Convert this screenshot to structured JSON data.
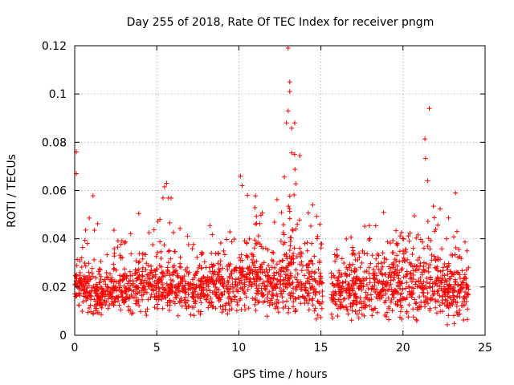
{
  "chart_data": {
    "type": "scatter",
    "title": "Day 255 of 2018, Rate Of TEC Index for receiver pngm",
    "xlabel": "GPS time / hours",
    "ylabel": "ROTI / TECUs",
    "xlim": [
      0,
      25
    ],
    "ylim": [
      0,
      0.12
    ],
    "x_ticks": [
      0,
      5,
      10,
      15,
      20,
      25
    ],
    "y_ticks": [
      0,
      0.02,
      0.04,
      0.06,
      0.08,
      0.1,
      0.12
    ],
    "x_tick_labels": [
      "0",
      "5",
      "10",
      "15",
      "20",
      "25"
    ],
    "y_tick_labels": [
      "0",
      "0.02",
      "0.04",
      "0.06",
      "0.08",
      "0.1",
      "0.12"
    ],
    "grid": true,
    "marker": "+",
    "color": "#ff0000",
    "data_gap_hours": [
      15.1,
      15.6
    ],
    "notable_points": [
      {
        "x": 0.1,
        "y": 0.076
      },
      {
        "x": 0.1,
        "y": 0.067
      },
      {
        "x": 5.6,
        "y": 0.063
      },
      {
        "x": 10.1,
        "y": 0.066
      },
      {
        "x": 10.2,
        "y": 0.062
      },
      {
        "x": 13.0,
        "y": 0.119
      },
      {
        "x": 13.1,
        "y": 0.105
      },
      {
        "x": 13.1,
        "y": 0.101
      },
      {
        "x": 13.0,
        "y": 0.093
      },
      {
        "x": 12.9,
        "y": 0.088
      },
      {
        "x": 13.4,
        "y": 0.088
      },
      {
        "x": 13.4,
        "y": 0.075
      },
      {
        "x": 21.6,
        "y": 0.094
      },
      {
        "x": 21.5,
        "y": 0.064
      },
      {
        "x": 23.2,
        "y": 0.059
      }
    ],
    "envelope": {
      "x": [
        0,
        0.5,
        1,
        1.5,
        2,
        2.5,
        3,
        3.5,
        4,
        4.5,
        5,
        5.5,
        6,
        6.5,
        7,
        7.5,
        8,
        8.5,
        9,
        9.5,
        10,
        10.5,
        11,
        11.5,
        12,
        12.5,
        13,
        13.5,
        14,
        14.5,
        15,
        15.6,
        16,
        16.5,
        17,
        17.5,
        18,
        18.5,
        19,
        19.5,
        20,
        20.5,
        21,
        21.5,
        22,
        22.5,
        23,
        23.5,
        24
      ],
      "low": [
        0.01,
        0.008,
        0.008,
        0.008,
        0.008,
        0.009,
        0.008,
        0.008,
        0.008,
        0.008,
        0.007,
        0.008,
        0.007,
        0.006,
        0.006,
        0.007,
        0.008,
        0.009,
        0.008,
        0.008,
        0.007,
        0.008,
        0.008,
        0.007,
        0.008,
        0.006,
        0.006,
        0.005,
        0.005,
        0.005,
        0.005,
        0.006,
        0.006,
        0.006,
        0.006,
        0.005,
        0.005,
        0.005,
        0.005,
        0.006,
        0.004,
        0.004,
        0.005,
        0.005,
        0.005,
        0.004,
        0.004,
        0.005,
        0.006
      ],
      "typical_high": [
        0.032,
        0.03,
        0.028,
        0.026,
        0.028,
        0.03,
        0.03,
        0.032,
        0.034,
        0.033,
        0.032,
        0.034,
        0.035,
        0.033,
        0.032,
        0.033,
        0.034,
        0.034,
        0.033,
        0.033,
        0.036,
        0.038,
        0.038,
        0.036,
        0.036,
        0.038,
        0.045,
        0.042,
        0.038,
        0.036,
        0.033,
        0.03,
        0.031,
        0.032,
        0.034,
        0.034,
        0.033,
        0.033,
        0.036,
        0.04,
        0.04,
        0.038,
        0.036,
        0.04,
        0.038,
        0.035,
        0.033,
        0.032,
        0.03
      ],
      "max_spike": [
        0.076,
        0.045,
        0.062,
        0.048,
        0.056,
        0.042,
        0.04,
        0.044,
        0.052,
        0.053,
        0.05,
        0.063,
        0.056,
        0.055,
        0.055,
        0.05,
        0.05,
        0.051,
        0.047,
        0.048,
        0.066,
        0.058,
        0.059,
        0.05,
        0.051,
        0.06,
        0.119,
        0.088,
        0.062,
        0.055,
        0.045,
        0.042,
        0.042,
        0.043,
        0.044,
        0.045,
        0.046,
        0.046,
        0.054,
        0.05,
        0.045,
        0.045,
        0.063,
        0.094,
        0.058,
        0.055,
        0.059,
        0.048,
        0.04
      ]
    }
  }
}
